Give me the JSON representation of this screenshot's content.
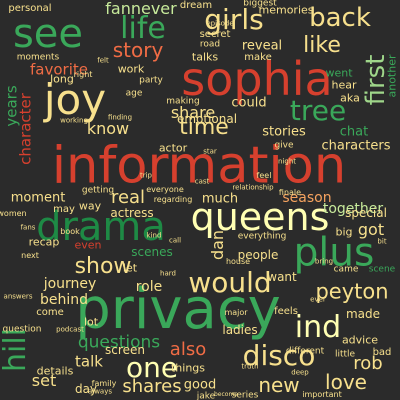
{
  "palette": {
    "red": "#d6402e",
    "coral": "#f06c45",
    "orange": "#f6a35f",
    "yellow": "#f7e08d",
    "cream": "#ffffb3",
    "mint": "#c7ea9b",
    "lgreen": "#9fd68a",
    "green": "#3aa85a",
    "dgreen": "#1e8a45"
  },
  "words": [
    {
      "text": "information",
      "color": "red"
    },
    {
      "text": "privacy",
      "color": "green"
    },
    {
      "text": "sophia",
      "color": "red"
    },
    {
      "text": "queens",
      "color": "cream"
    },
    {
      "text": "drama",
      "color": "dgreen"
    },
    {
      "text": "plus",
      "color": "green"
    },
    {
      "text": "joy",
      "color": "yellow"
    },
    {
      "text": "see",
      "color": "green"
    },
    {
      "text": "life",
      "color": "green"
    },
    {
      "text": "girls",
      "color": "yellow"
    },
    {
      "text": "back",
      "color": "yellow"
    },
    {
      "text": "first",
      "color": "lgreen"
    },
    {
      "text": "like",
      "color": "yellow"
    },
    {
      "text": "tree",
      "color": "green"
    },
    {
      "text": "story",
      "color": "coral"
    },
    {
      "text": "one",
      "color": "cream"
    },
    {
      "text": "disco",
      "color": "yellow"
    },
    {
      "text": "ind",
      "color": "cream"
    },
    {
      "text": "would",
      "color": "yellow"
    },
    {
      "text": "show",
      "color": "yellow"
    },
    {
      "text": "time",
      "color": "yellow"
    },
    {
      "text": "peyton",
      "color": "yellow"
    },
    {
      "text": "new",
      "color": "yellow"
    },
    {
      "text": "love",
      "color": "yellow"
    },
    {
      "text": "hill",
      "color": "green"
    },
    {
      "text": "favorite",
      "color": "coral"
    },
    {
      "text": "fannever",
      "color": "mint"
    },
    {
      "text": "years",
      "color": "green"
    },
    {
      "text": "character",
      "color": "red"
    },
    {
      "text": "characters",
      "color": "yellow"
    },
    {
      "text": "stories",
      "color": "yellow"
    },
    {
      "text": "emotional",
      "color": "yellow"
    },
    {
      "text": "share",
      "color": "yellow"
    },
    {
      "text": "real",
      "color": "yellow"
    },
    {
      "text": "know",
      "color": "yellow"
    },
    {
      "text": "questions",
      "color": "green"
    },
    {
      "text": "also",
      "color": "coral"
    },
    {
      "text": "shares",
      "color": "yellow"
    },
    {
      "text": "set",
      "color": "yellow"
    },
    {
      "text": "talk",
      "color": "yellow"
    },
    {
      "text": "dan",
      "color": "yellow"
    },
    {
      "text": "season",
      "color": "orange"
    },
    {
      "text": "together",
      "color": "mint"
    },
    {
      "text": "got",
      "color": "yellow"
    },
    {
      "text": "rob",
      "color": "yellow"
    },
    {
      "text": "memories",
      "color": "yellow"
    },
    {
      "text": "reveal",
      "color": "yellow"
    },
    {
      "text": "went",
      "color": "green"
    },
    {
      "text": "chat",
      "color": "green"
    },
    {
      "text": "role",
      "color": "yellow"
    },
    {
      "text": "moment",
      "color": "yellow"
    },
    {
      "text": "journey",
      "color": "yellow"
    },
    {
      "text": "behind",
      "color": "yellow"
    },
    {
      "text": "made",
      "color": "yellow"
    },
    {
      "text": "scenes",
      "color": "green"
    },
    {
      "text": "people",
      "color": "yellow"
    },
    {
      "text": "want",
      "color": "yellow"
    },
    {
      "text": "good",
      "color": "yellow"
    },
    {
      "text": "day",
      "color": "yellow"
    },
    {
      "text": "ladies",
      "color": "yellow"
    },
    {
      "text": "screen",
      "color": "yellow"
    },
    {
      "text": "details",
      "color": "yellow"
    },
    {
      "text": "recap",
      "color": "yellow"
    },
    {
      "text": "special",
      "color": "yellow"
    },
    {
      "text": "big",
      "color": "yellow"
    },
    {
      "text": "could",
      "color": "yellow"
    },
    {
      "text": "much",
      "color": "yellow"
    },
    {
      "text": "actress",
      "color": "yellow"
    },
    {
      "text": "aka",
      "color": "yellow"
    },
    {
      "text": "hear",
      "color": "yellow"
    },
    {
      "text": "work",
      "color": "yellow"
    },
    {
      "text": "personal",
      "color": "yellow"
    },
    {
      "text": "secret",
      "color": "yellow"
    },
    {
      "text": "road",
      "color": "yellow"
    },
    {
      "text": "dream",
      "color": "yellow"
    },
    {
      "text": "biggest",
      "color": "yellow"
    },
    {
      "text": "another",
      "color": "green"
    },
    {
      "text": "make",
      "color": "yellow"
    },
    {
      "text": "moments",
      "color": "yellow"
    },
    {
      "text": "long",
      "color": "yellow"
    },
    {
      "text": "age",
      "color": "yellow"
    },
    {
      "text": "party",
      "color": "yellow"
    },
    {
      "text": "talks",
      "color": "yellow"
    },
    {
      "text": "making",
      "color": "yellow"
    },
    {
      "text": "actor",
      "color": "yellow"
    },
    {
      "text": "even",
      "color": "red"
    },
    {
      "text": "come",
      "color": "yellow"
    },
    {
      "text": "let",
      "color": "yellow"
    },
    {
      "text": "things",
      "color": "yellow"
    },
    {
      "text": "jake",
      "color": "yellow"
    },
    {
      "text": "advice",
      "color": "yellow"
    },
    {
      "text": "bad",
      "color": "yellow"
    },
    {
      "text": "different",
      "color": "yellow"
    },
    {
      "text": "little",
      "color": "yellow"
    },
    {
      "text": "feels",
      "color": "yellow"
    },
    {
      "text": "series",
      "color": "yellow"
    },
    {
      "text": "lot",
      "color": "yellow"
    },
    {
      "text": "women",
      "color": "yellow"
    },
    {
      "text": "way",
      "color": "yellow"
    },
    {
      "text": "may",
      "color": "yellow"
    },
    {
      "text": "getting",
      "color": "yellow"
    },
    {
      "text": "everything",
      "color": "yellow"
    },
    {
      "text": "finale",
      "color": "yellow"
    },
    {
      "text": "relationship",
      "color": "yellow"
    },
    {
      "text": "came",
      "color": "yellow"
    },
    {
      "text": "scene",
      "color": "green"
    },
    {
      "text": "give",
      "color": "yellow"
    },
    {
      "text": "feel",
      "color": "yellow"
    },
    {
      "text": "right",
      "color": "yellow"
    },
    {
      "text": "bring",
      "color": "yellow"
    },
    {
      "text": "house",
      "color": "yellow"
    },
    {
      "text": "family",
      "color": "yellow"
    },
    {
      "text": "question",
      "color": "yellow"
    },
    {
      "text": "always",
      "color": "yellow"
    },
    {
      "text": "important",
      "color": "yellow"
    },
    {
      "text": "major",
      "color": "yellow"
    },
    {
      "text": "next",
      "color": "yellow"
    },
    {
      "text": "book",
      "color": "yellow"
    },
    {
      "text": "everyone",
      "color": "yellow"
    },
    {
      "text": "regarding",
      "color": "yellow"
    },
    {
      "text": "answers",
      "color": "yellow"
    },
    {
      "text": "episode",
      "color": "yellow"
    },
    {
      "text": "kind",
      "color": "yellow"
    },
    {
      "text": "podcast",
      "color": "yellow"
    },
    {
      "text": "night",
      "color": "yellow"
    },
    {
      "text": "truth",
      "color": "yellow"
    },
    {
      "text": "star",
      "color": "yellow"
    },
    {
      "text": "cast",
      "color": "yellow"
    },
    {
      "text": "ever",
      "color": "yellow"
    },
    {
      "text": "felt",
      "color": "yellow"
    },
    {
      "text": "bit",
      "color": "yellow"
    },
    {
      "text": "trip",
      "color": "yellow"
    },
    {
      "text": "finding",
      "color": "yellow"
    },
    {
      "text": "fans",
      "color": "yellow"
    },
    {
      "text": "call",
      "color": "yellow"
    },
    {
      "text": "become",
      "color": "yellow"
    },
    {
      "text": "hard",
      "color": "yellow"
    },
    {
      "text": "deep",
      "color": "yellow"
    },
    {
      "text": "working",
      "color": "yellow"
    }
  ]
}
